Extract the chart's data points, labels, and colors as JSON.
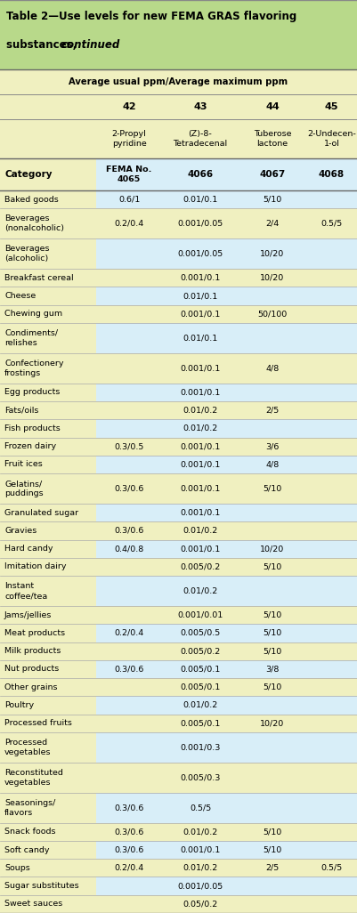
{
  "title_line1": "Table 2—Use levels for new FEMA GRAS flavoring",
  "title_line2_normal": "substances, ",
  "title_line2_italic": "continued",
  "header_bg": "#b8d98a",
  "subheader_bg": "#f0f0c0",
  "data_bg_blue": "#d8eef8",
  "data_bg_yellow": "#f0f0c0",
  "avg_label": "Average usual ppm/Average maximum ppm",
  "col_numbers": [
    "42",
    "43",
    "44",
    "45"
  ],
  "col_names": [
    "2-Propyl\npyridine",
    "(Z)-8-\nTetradecenal",
    "Tuberose\nlactone",
    "2-Undecen-\n1-ol"
  ],
  "rows": [
    [
      "Baked goods",
      "0.6/1",
      "0.01/0.1",
      "5/10",
      ""
    ],
    [
      "Beverages\n(nonalcoholic)",
      "0.2/0.4",
      "0.001/0.05",
      "2/4",
      "0.5/5"
    ],
    [
      "Beverages\n(alcoholic)",
      "",
      "0.001/0.05",
      "10/20",
      ""
    ],
    [
      "Breakfast cereal",
      "",
      "0.001/0.1",
      "10/20",
      ""
    ],
    [
      "Cheese",
      "",
      "0.01/0.1",
      "",
      ""
    ],
    [
      "Chewing gum",
      "",
      "0.001/0.1",
      "50/100",
      ""
    ],
    [
      "Condiments/\nrelishes",
      "",
      "0.01/0.1",
      "",
      ""
    ],
    [
      "Confectionery\nfrostings",
      "",
      "0.001/0.1",
      "4/8",
      ""
    ],
    [
      "Egg products",
      "",
      "0.001/0.1",
      "",
      ""
    ],
    [
      "Fats/oils",
      "",
      "0.01/0.2",
      "2/5",
      ""
    ],
    [
      "Fish products",
      "",
      "0.01/0.2",
      "",
      ""
    ],
    [
      "Frozen dairy",
      "0.3/0.5",
      "0.001/0.1",
      "3/6",
      ""
    ],
    [
      "Fruit ices",
      "",
      "0.001/0.1",
      "4/8",
      ""
    ],
    [
      "Gelatins/\npuddings",
      "0.3/0.6",
      "0.001/0.1",
      "5/10",
      ""
    ],
    [
      "Granulated sugar",
      "",
      "0.001/0.1",
      "",
      ""
    ],
    [
      "Gravies",
      "0.3/0.6",
      "0.01/0.2",
      "",
      ""
    ],
    [
      "Hard candy",
      "0.4/0.8",
      "0.001/0.1",
      "10/20",
      ""
    ],
    [
      "Imitation dairy",
      "",
      "0.005/0.2",
      "5/10",
      ""
    ],
    [
      "Instant\ncoffee/tea",
      "",
      "0.01/0.2",
      "",
      ""
    ],
    [
      "Jams/jellies",
      "",
      "0.001/0.01",
      "5/10",
      ""
    ],
    [
      "Meat products",
      "0.2/0.4",
      "0.005/0.5",
      "5/10",
      ""
    ],
    [
      "Milk products",
      "",
      "0.005/0.2",
      "5/10",
      ""
    ],
    [
      "Nut products",
      "0.3/0.6",
      "0.005/0.1",
      "3/8",
      ""
    ],
    [
      "Other grains",
      "",
      "0.005/0.1",
      "5/10",
      ""
    ],
    [
      "Poultry",
      "",
      "0.01/0.2",
      "",
      ""
    ],
    [
      "Processed fruits",
      "",
      "0.005/0.1",
      "10/20",
      ""
    ],
    [
      "Processed\nvegetables",
      "",
      "0.001/0.3",
      "",
      ""
    ],
    [
      "Reconstituted\nvegetables",
      "",
      "0.005/0.3",
      "",
      ""
    ],
    [
      "Seasonings/\nflavors",
      "0.3/0.6",
      "0.5/5",
      "",
      ""
    ],
    [
      "Snack foods",
      "0.3/0.6",
      "0.01/0.2",
      "5/10",
      ""
    ],
    [
      "Soft candy",
      "0.3/0.6",
      "0.001/0.1",
      "5/10",
      ""
    ],
    [
      "Soups",
      "0.2/0.4",
      "0.01/0.2",
      "2/5",
      "0.5/5"
    ],
    [
      "Sugar substitutes",
      "",
      "0.001/0.05",
      "",
      ""
    ],
    [
      "Sweet sauces",
      "",
      "0.05/0.2",
      "",
      ""
    ]
  ]
}
